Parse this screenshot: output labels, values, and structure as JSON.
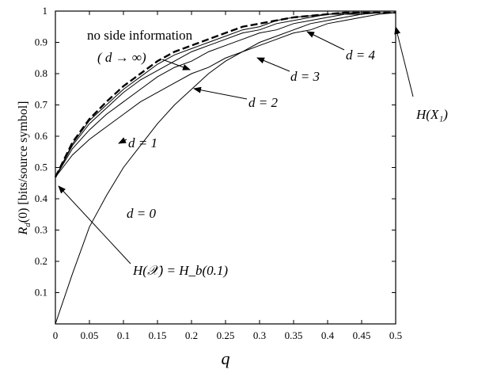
{
  "chart_data": {
    "type": "line",
    "xlabel": "q",
    "ylabel": "R_d(0) [bits/source symbol]",
    "xlim": [
      0,
      0.5
    ],
    "ylim": [
      0,
      1
    ],
    "grid": false,
    "legend": "none",
    "x_ticks": [
      "0",
      "0.05",
      "0.1",
      "0.15",
      "0.2",
      "0.25",
      "0.3",
      "0.35",
      "0.4",
      "0.45",
      "0.5"
    ],
    "y_ticks": [
      "0.1",
      "0.2",
      "0.3",
      "0.4",
      "0.5",
      "0.6",
      "0.7",
      "0.8",
      "0.9",
      "1"
    ],
    "x": [
      0,
      0.025,
      0.05,
      0.075,
      0.1,
      0.125,
      0.15,
      0.175,
      0.2,
      0.225,
      0.25,
      0.275,
      0.3,
      0.325,
      0.35,
      0.375,
      0.4,
      0.425,
      0.45,
      0.475,
      0.5
    ],
    "series": [
      {
        "name": "d = 0",
        "style": "thin",
        "values": [
          0,
          0.16,
          0.31,
          0.41,
          0.5,
          0.57,
          0.64,
          0.7,
          0.75,
          0.8,
          0.84,
          0.87,
          0.9,
          0.92,
          0.94,
          0.96,
          0.97,
          0.98,
          0.99,
          0.995,
          0.995
        ]
      },
      {
        "name": "d = 1",
        "style": "thin",
        "values": [
          0.469,
          0.54,
          0.59,
          0.63,
          0.67,
          0.71,
          0.74,
          0.77,
          0.8,
          0.82,
          0.85,
          0.87,
          0.89,
          0.91,
          0.93,
          0.94,
          0.96,
          0.97,
          0.98,
          0.99,
          0.995
        ]
      },
      {
        "name": "d = 2",
        "style": "thin",
        "values": [
          0.469,
          0.56,
          0.62,
          0.67,
          0.71,
          0.75,
          0.79,
          0.82,
          0.84,
          0.87,
          0.89,
          0.91,
          0.93,
          0.94,
          0.96,
          0.97,
          0.98,
          0.99,
          0.99,
          0.995,
          0.995
        ]
      },
      {
        "name": "d = 3",
        "style": "thin",
        "values": [
          0.469,
          0.57,
          0.64,
          0.69,
          0.74,
          0.78,
          0.81,
          0.84,
          0.87,
          0.89,
          0.91,
          0.93,
          0.94,
          0.96,
          0.97,
          0.98,
          0.99,
          0.99,
          0.995,
          0.995,
          0.995
        ]
      },
      {
        "name": "d = 4",
        "style": "thin",
        "values": [
          0.469,
          0.575,
          0.65,
          0.7,
          0.75,
          0.79,
          0.83,
          0.86,
          0.88,
          0.9,
          0.92,
          0.94,
          0.95,
          0.97,
          0.98,
          0.985,
          0.99,
          0.995,
          0.995,
          0.995,
          0.995
        ]
      },
      {
        "name": "no side information (d → ∞)",
        "style": "dashed",
        "values": [
          0.469,
          0.58,
          0.655,
          0.71,
          0.76,
          0.8,
          0.84,
          0.87,
          0.89,
          0.91,
          0.93,
          0.95,
          0.96,
          0.97,
          0.98,
          0.985,
          0.99,
          0.995,
          0.995,
          0.995,
          0.995
        ]
      }
    ],
    "annotations": {
      "no_side_line1": "no side information",
      "no_side_line2": "( d → ∞)",
      "d4": "d = 4",
      "d3": "d = 3",
      "d2": "d = 2",
      "d1": "d = 1",
      "d0": "d = 0",
      "hx1": "H(X₁)",
      "hx": "H(𝒳) = H_b(0.1)"
    }
  }
}
